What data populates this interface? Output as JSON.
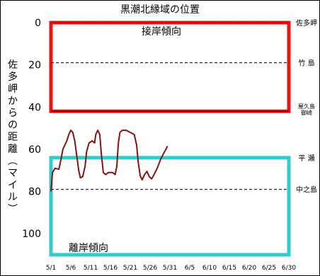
{
  "chart_data": {
    "type": "line",
    "title": "黒潮北縁域の位置",
    "ylabel": "佐多岬からの距離（マイル）",
    "xlabel": "",
    "ylim": [
      0,
      105
    ],
    "y_inverted": true,
    "y_ticks": [
      0,
      20,
      40,
      60,
      80,
      100
    ],
    "x_tick_labels": [
      "5/1",
      "5/6",
      "5/11",
      "5/16",
      "5/21",
      "5/26",
      "5/31",
      "6/5",
      "6/10",
      "6/15",
      "6/20",
      "6/25",
      "6/30"
    ],
    "x_range_days": [
      0,
      60
    ],
    "grid": false,
    "bands": [
      {
        "label": "接岸傾向",
        "y_range": [
          0,
          42
        ],
        "color": "#ee1111"
      },
      {
        "label": "離岸傾向",
        "y_range": [
          64,
          110
        ],
        "color": "#33cccc"
      }
    ],
    "reference_lines": [
      {
        "name": "佐多岬",
        "y": 0,
        "style": "dotted"
      },
      {
        "name": "竹 島",
        "y": 19,
        "style": "dashed"
      },
      {
        "name": "屋久島\n御崎",
        "y": 42,
        "style": "solid"
      },
      {
        "name": "平 瀬",
        "y": 64,
        "style": "none"
      },
      {
        "name": "中之島",
        "y": 79,
        "style": "dashed"
      }
    ],
    "series": [
      {
        "color": "#8b1010",
        "points": [
          [
            0,
            80
          ],
          [
            0.4,
            71
          ],
          [
            1,
            69
          ],
          [
            2,
            69.5
          ],
          [
            2.5,
            65
          ],
          [
            3,
            60
          ],
          [
            4,
            56
          ],
          [
            4.5,
            53
          ],
          [
            5,
            51
          ],
          [
            5.5,
            52
          ],
          [
            6,
            56
          ],
          [
            6.5,
            63
          ],
          [
            7,
            70
          ],
          [
            7.4,
            73.5
          ],
          [
            8,
            73
          ],
          [
            8.6,
            68
          ],
          [
            9,
            61
          ],
          [
            9.6,
            57
          ],
          [
            10.4,
            56
          ],
          [
            11,
            57
          ],
          [
            11.3,
            53
          ],
          [
            11.8,
            51
          ],
          [
            12.3,
            53
          ],
          [
            12.7,
            62
          ],
          [
            13.2,
            71
          ],
          [
            13.8,
            72
          ],
          [
            14.5,
            71
          ],
          [
            15.5,
            71
          ],
          [
            16.2,
            72
          ],
          [
            16.6,
            68
          ],
          [
            17,
            57
          ],
          [
            17.4,
            52
          ],
          [
            18,
            51
          ],
          [
            19,
            51
          ],
          [
            20,
            52
          ],
          [
            21,
            53
          ],
          [
            21.6,
            58
          ],
          [
            22,
            66
          ],
          [
            22.5,
            72.5
          ],
          [
            23,
            74.5
          ],
          [
            23.6,
            72
          ],
          [
            24.2,
            70.5
          ],
          [
            24.8,
            73
          ],
          [
            25.4,
            74
          ],
          [
            26,
            72
          ],
          [
            26.8,
            69
          ],
          [
            27.6,
            65
          ],
          [
            28.4,
            62
          ],
          [
            29,
            60
          ],
          [
            29.4,
            58.5
          ]
        ]
      }
    ]
  }
}
